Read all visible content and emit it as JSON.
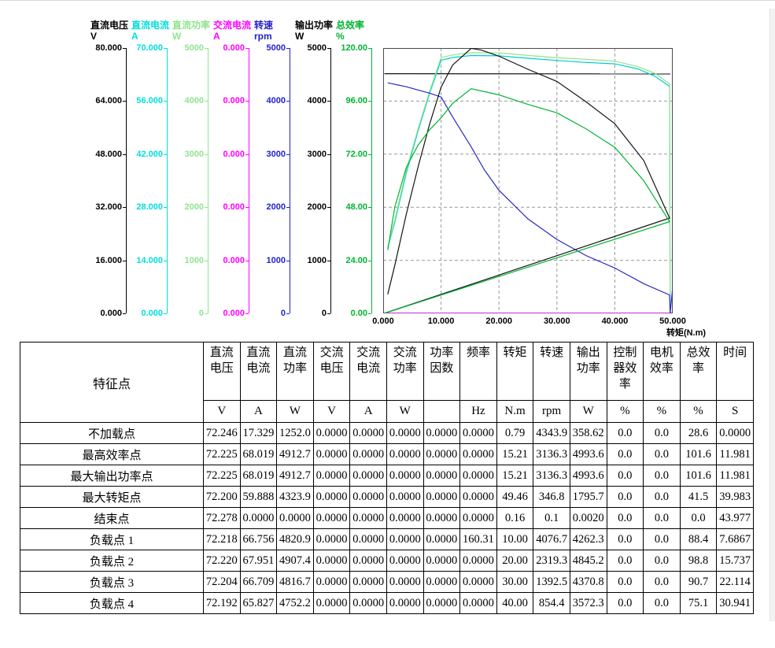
{
  "chart_data": {
    "type": "line",
    "title": "",
    "xlabel": "转矩(N.m)",
    "x_range": [
      0,
      50
    ],
    "x_ticks": [
      "0.000",
      "10.000",
      "20.000",
      "30.000",
      "40.000",
      "50.000"
    ],
    "grid": "dashed",
    "legend_position": "none",
    "axes": [
      {
        "name": "直流电压",
        "unit": "V",
        "color": "#000000",
        "ticks": [
          "80.000",
          "64.000",
          "48.000",
          "32.000",
          "16.000",
          "0.000"
        ]
      },
      {
        "name": "直流电流",
        "unit": "A",
        "color": "#00dede",
        "ticks": [
          "70.000",
          "56.000",
          "42.000",
          "28.000",
          "14.000",
          "0.000"
        ]
      },
      {
        "name": "直流功率",
        "unit": "W",
        "color": "#8fe48f",
        "ticks": [
          "5000",
          "4000",
          "3000",
          "2000",
          "1000",
          "0"
        ]
      },
      {
        "name": "交流电流",
        "unit": "A",
        "color": "#ff00ff",
        "ticks": [
          "0.000",
          "0.000",
          "0.000",
          "0.000",
          "0.000",
          "0.000"
        ]
      },
      {
        "name": "转速",
        "unit": "rpm",
        "color": "#2222cc",
        "ticks": [
          "5000",
          "4000",
          "3000",
          "2000",
          "1000",
          "0"
        ]
      },
      {
        "name": "输出功率",
        "unit": "W",
        "color": "#000000",
        "ticks": [
          "5000",
          "4000",
          "3000",
          "2000",
          "1000",
          "0"
        ]
      },
      {
        "name": "总效率",
        "unit": "%",
        "color": "#00b432",
        "ticks": [
          "120.00",
          "96.00",
          "72.00",
          "48.00",
          "24.00",
          "0.00"
        ]
      }
    ],
    "series": [
      {
        "name": "直流电压",
        "unit": "V",
        "color": "#141414",
        "axis_range": [
          0,
          80
        ],
        "points": [
          [
            0.2,
            72.25
          ],
          [
            49.6,
            72.2
          ]
        ]
      },
      {
        "name": "直流电流",
        "unit": "A",
        "color": "#00cccc",
        "axis_range": [
          0,
          70
        ],
        "points": [
          [
            0.79,
            17.329
          ],
          [
            2,
            24
          ],
          [
            4,
            37
          ],
          [
            6,
            48
          ],
          [
            8,
            58
          ],
          [
            10,
            66.756
          ],
          [
            12,
            67.5
          ],
          [
            15.21,
            68.019
          ],
          [
            20,
            67.951
          ],
          [
            25,
            67.3
          ],
          [
            30,
            66.709
          ],
          [
            35,
            66.2
          ],
          [
            40,
            65.827
          ],
          [
            44,
            64.5
          ],
          [
            47,
            62.5
          ],
          [
            49.46,
            59.888
          ],
          [
            49.55,
            0
          ],
          [
            0.3,
            0
          ]
        ]
      },
      {
        "name": "直流功率",
        "unit": "W",
        "color": "#8fe48f",
        "axis_range": [
          0,
          5000
        ],
        "points": [
          [
            0.79,
            1252
          ],
          [
            2,
            1760
          ],
          [
            4,
            2700
          ],
          [
            6,
            3470
          ],
          [
            8,
            4180
          ],
          [
            10,
            4820.9
          ],
          [
            12,
            4870
          ],
          [
            15.21,
            4912.7
          ],
          [
            20,
            4907.4
          ],
          [
            25,
            4860
          ],
          [
            30,
            4816.7
          ],
          [
            35,
            4790
          ],
          [
            40,
            4752.2
          ],
          [
            44,
            4650
          ],
          [
            47,
            4520
          ],
          [
            49.46,
            4323.9
          ],
          [
            49.55,
            0
          ],
          [
            0.3,
            0
          ]
        ]
      },
      {
        "name": "交流电流",
        "unit": "A",
        "color": "#ff00ff",
        "axis_range": [
          0,
          1
        ],
        "points": [
          [
            0.2,
            0
          ],
          [
            49.5,
            0
          ]
        ]
      },
      {
        "name": "转速",
        "unit": "rpm",
        "color": "#2828c8",
        "axis_range": [
          0,
          5000
        ],
        "points": [
          [
            0.79,
            4343.9
          ],
          [
            4,
            4270
          ],
          [
            8,
            4150
          ],
          [
            10,
            4076.7
          ],
          [
            12,
            3700
          ],
          [
            15.21,
            3136.3
          ],
          [
            17.5,
            2700
          ],
          [
            20,
            2319.3
          ],
          [
            25,
            1780
          ],
          [
            30,
            1392.5
          ],
          [
            35,
            1090
          ],
          [
            40,
            854.4
          ],
          [
            45,
            560
          ],
          [
            49.46,
            346.8
          ],
          [
            49.55,
            0.1
          ],
          [
            49.95,
            430
          ]
        ]
      },
      {
        "name": "输出功率",
        "unit": "W",
        "color": "#141414",
        "axis_range": [
          0,
          5000
        ],
        "points": [
          [
            0.79,
            358.62
          ],
          [
            2,
            900
          ],
          [
            4,
            1870
          ],
          [
            6,
            2750
          ],
          [
            8,
            3560
          ],
          [
            10,
            4262.3
          ],
          [
            12,
            4680
          ],
          [
            15.21,
            4993.6
          ],
          [
            17,
            4960
          ],
          [
            20,
            4845.2
          ],
          [
            25,
            4600
          ],
          [
            30,
            4370.8
          ],
          [
            35,
            3990
          ],
          [
            40,
            3572.3
          ],
          [
            45,
            2880
          ],
          [
            49.46,
            1795.7
          ],
          [
            0.16,
            0.002
          ]
        ]
      },
      {
        "name": "总效率",
        "unit": "%",
        "color": "#00b432",
        "axis_range": [
          0,
          120
        ],
        "points": [
          [
            0.79,
            28.6
          ],
          [
            2,
            48
          ],
          [
            4,
            66
          ],
          [
            6,
            76
          ],
          [
            8,
            83
          ],
          [
            10,
            88.4
          ],
          [
            12,
            95
          ],
          [
            15.21,
            101.6
          ],
          [
            20,
            98.8
          ],
          [
            25,
            94.5
          ],
          [
            30,
            90.7
          ],
          [
            35,
            83.5
          ],
          [
            40,
            75.1
          ],
          [
            45,
            60
          ],
          [
            49.46,
            41.5
          ],
          [
            0.16,
            0
          ]
        ]
      }
    ]
  },
  "table": {
    "corner_header": "特征点",
    "columns": [
      {
        "title": "直流\n电压",
        "unit": "V"
      },
      {
        "title": "直流\n电流",
        "unit": "A"
      },
      {
        "title": "直流\n功率",
        "unit": "W"
      },
      {
        "title": "交流\n电压",
        "unit": "V"
      },
      {
        "title": "交流\n电流",
        "unit": "A"
      },
      {
        "title": "交流\n功率",
        "unit": "W"
      },
      {
        "title": "功率\n因数",
        "unit": ""
      },
      {
        "title": "频率",
        "unit": "Hz"
      },
      {
        "title": "转矩",
        "unit": "N.m"
      },
      {
        "title": "转速",
        "unit": "rpm"
      },
      {
        "title": "输出\n功率",
        "unit": "W"
      },
      {
        "title": "控制\n器效\n率",
        "unit": "%"
      },
      {
        "title": "电机\n效率",
        "unit": "%"
      },
      {
        "title": "总效\n率",
        "unit": "%"
      },
      {
        "title": "时间",
        "unit": "S"
      }
    ],
    "rows": [
      {
        "label": "不加载点",
        "values": [
          "72.246",
          "17.329",
          "1252.0",
          "0.0000",
          "0.0000",
          "0.0000",
          "0.0000",
          "0.0000",
          "0.79",
          "4343.9",
          "358.62",
          "0.0",
          "0.0",
          "28.6",
          "0.0000"
        ]
      },
      {
        "label": "最高效率点",
        "values": [
          "72.225",
          "68.019",
          "4912.7",
          "0.0000",
          "0.0000",
          "0.0000",
          "0.0000",
          "0.0000",
          "15.21",
          "3136.3",
          "4993.6",
          "0.0",
          "0.0",
          "101.6",
          "11.981"
        ]
      },
      {
        "label": "最大输出功率点",
        "values": [
          "72.225",
          "68.019",
          "4912.7",
          "0.0000",
          "0.0000",
          "0.0000",
          "0.0000",
          "0.0000",
          "15.21",
          "3136.3",
          "4993.6",
          "0.0",
          "0.0",
          "101.6",
          "11.981"
        ]
      },
      {
        "label": "最大转矩点",
        "values": [
          "72.200",
          "59.888",
          "4323.9",
          "0.0000",
          "0.0000",
          "0.0000",
          "0.0000",
          "0.0000",
          "49.46",
          "346.8",
          "1795.7",
          "0.0",
          "0.0",
          "41.5",
          "39.983"
        ]
      },
      {
        "label": "结束点",
        "values": [
          "72.278",
          "0.0000",
          "0.0000",
          "0.0000",
          "0.0000",
          "0.0000",
          "0.0000",
          "0.0000",
          "0.16",
          "0.1",
          "0.0020",
          "0.0",
          "0.0",
          "0.0",
          "43.977"
        ]
      },
      {
        "label": "负载点 1",
        "values": [
          "72.218",
          "66.756",
          "4820.9",
          "0.0000",
          "0.0000",
          "0.0000",
          "0.0000",
          "160.31",
          "10.00",
          "4076.7",
          "4262.3",
          "0.0",
          "0.0",
          "88.4",
          "7.6867"
        ]
      },
      {
        "label": "负载点 2",
        "values": [
          "72.220",
          "67.951",
          "4907.4",
          "0.0000",
          "0.0000",
          "0.0000",
          "0.0000",
          "0.0000",
          "20.00",
          "2319.3",
          "4845.2",
          "0.0",
          "0.0",
          "98.8",
          "15.737"
        ]
      },
      {
        "label": "负载点 3",
        "values": [
          "72.204",
          "66.709",
          "4816.7",
          "0.0000",
          "0.0000",
          "0.0000",
          "0.0000",
          "0.0000",
          "30.00",
          "1392.5",
          "4370.8",
          "0.0",
          "0.0",
          "90.7",
          "22.114"
        ]
      },
      {
        "label": "负载点 4",
        "values": [
          "72.192",
          "65.827",
          "4752.2",
          "0.0000",
          "0.0000",
          "0.0000",
          "0.0000",
          "0.0000",
          "40.00",
          "854.4",
          "3572.3",
          "0.0",
          "0.0",
          "75.1",
          "30.941"
        ]
      }
    ]
  }
}
